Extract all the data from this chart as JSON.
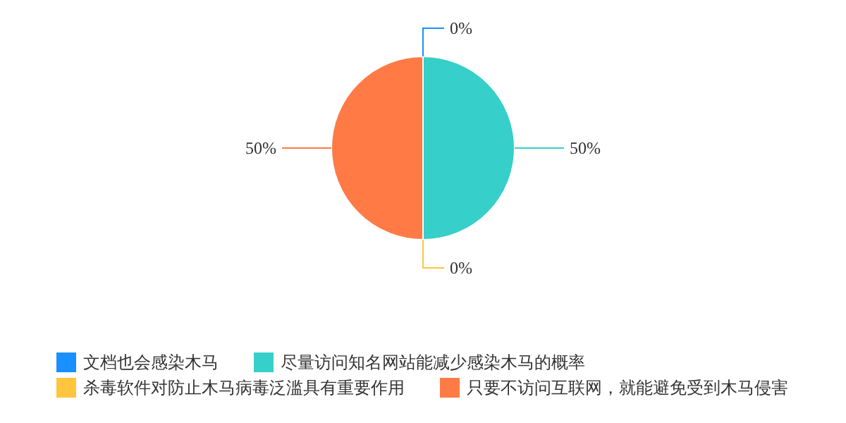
{
  "chart_data": {
    "type": "pie",
    "categories": [
      "文档也会感染木马",
      "尽量访问知名网站能减少感染木马的概率",
      "杀毒软件对防止木马病毒泛滥具有重要作用",
      "只要不访问互联网，就能避免受到木马侵害"
    ],
    "values": [
      0,
      50,
      0,
      50
    ],
    "colors": [
      "#1890ff",
      "#36cfc9",
      "#ffc53d",
      "#ff7a45"
    ],
    "value_labels": [
      "0%",
      "50%",
      "0%",
      "50%"
    ],
    "legend": "bottom"
  }
}
